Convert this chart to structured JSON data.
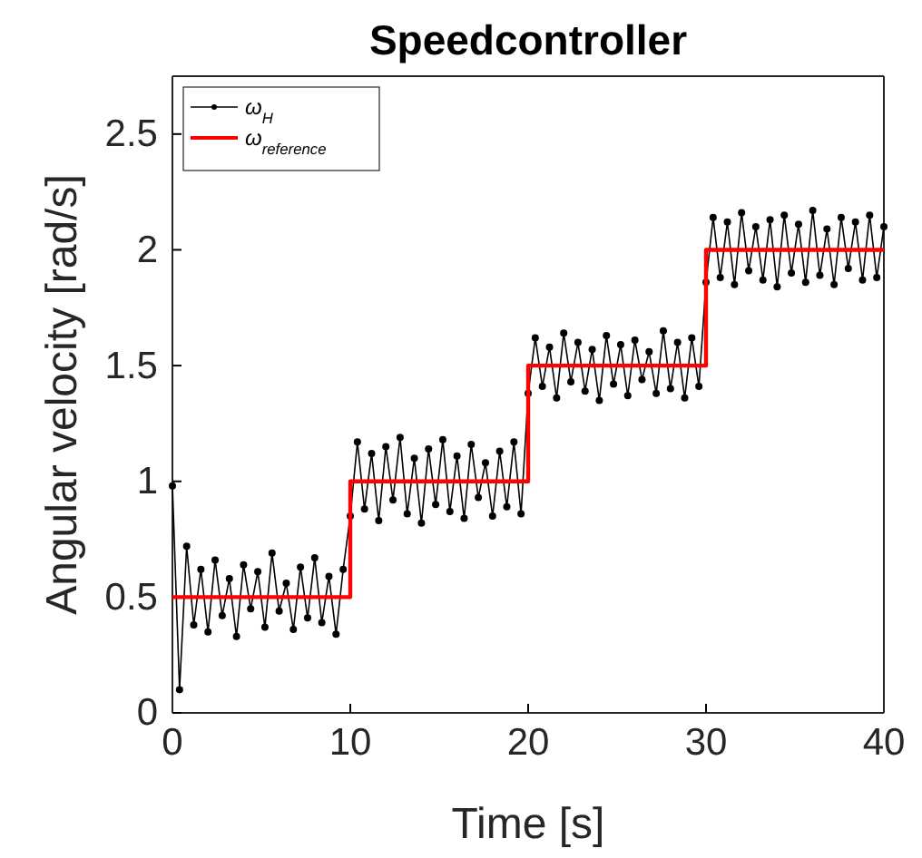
{
  "chart_data": {
    "type": "line",
    "title": "Speedcontroller",
    "xlabel": "Time [s]",
    "ylabel": "Angular velocity [rad/s]",
    "xlim": [
      0,
      40
    ],
    "xticks": [
      0,
      10,
      20,
      30,
      40
    ],
    "ylim": [
      0,
      2.75
    ],
    "yticks": [
      0,
      0.5,
      1,
      1.5,
      2,
      2.5
    ],
    "grid": false,
    "legend": "top left",
    "line_style": "solid",
    "series": [
      {
        "name": "ω$_{H}$",
        "color": "#000000",
        "marker": "circle",
        "x": [
          0,
          0.4,
          0.8,
          1.2,
          1.6,
          2,
          2.4,
          2.8,
          3.2,
          3.6,
          4,
          4.4,
          4.8,
          5.2,
          5.6,
          6,
          6.4,
          6.8,
          7.2,
          7.6,
          8,
          8.4,
          8.8,
          9.2,
          9.6,
          10,
          10.4,
          10.8,
          11.2,
          11.6,
          12,
          12.4,
          12.8,
          13.2,
          13.6,
          14,
          14.4,
          14.8,
          15.2,
          15.6,
          16,
          16.4,
          16.8,
          17.2,
          17.6,
          18,
          18.4,
          18.8,
          19.2,
          19.6,
          20,
          20.4,
          20.8,
          21.2,
          21.6,
          22,
          22.4,
          22.8,
          23.2,
          23.6,
          24,
          24.4,
          24.8,
          25.2,
          25.6,
          26,
          26.4,
          26.8,
          27.2,
          27.6,
          28,
          28.4,
          28.8,
          29.2,
          29.6,
          30,
          30.4,
          30.8,
          31.2,
          31.6,
          32,
          32.4,
          32.8,
          33.2,
          33.6,
          34,
          34.4,
          34.8,
          35.2,
          35.6,
          36,
          36.4,
          36.8,
          37.2,
          37.6,
          38,
          38.4,
          38.8,
          39.2,
          39.6,
          40
        ],
        "values": [
          0.98,
          0.1,
          0.72,
          0.38,
          0.62,
          0.35,
          0.66,
          0.42,
          0.58,
          0.33,
          0.64,
          0.45,
          0.61,
          0.37,
          0.69,
          0.44,
          0.56,
          0.36,
          0.63,
          0.41,
          0.67,
          0.39,
          0.59,
          0.34,
          0.62,
          0.85,
          1.17,
          0.88,
          1.12,
          0.83,
          1.15,
          0.92,
          1.19,
          0.86,
          1.1,
          0.82,
          1.14,
          0.9,
          1.18,
          0.87,
          1.11,
          0.84,
          1.16,
          0.93,
          1.08,
          0.85,
          1.13,
          0.89,
          1.17,
          0.86,
          1.38,
          1.62,
          1.41,
          1.58,
          1.36,
          1.64,
          1.43,
          1.6,
          1.39,
          1.57,
          1.35,
          1.63,
          1.42,
          1.59,
          1.37,
          1.61,
          1.44,
          1.56,
          1.38,
          1.65,
          1.4,
          1.6,
          1.36,
          1.62,
          1.41,
          1.86,
          2.14,
          1.88,
          2.12,
          1.85,
          2.16,
          1.91,
          2.1,
          1.87,
          2.13,
          1.84,
          2.15,
          1.9,
          2.11,
          1.86,
          2.17,
          1.89,
          2.09,
          1.85,
          2.14,
          1.92,
          2.12,
          1.87,
          2.15,
          1.88,
          2.1
        ]
      },
      {
        "name": "ω$_{reference}$",
        "color": "#ff0000",
        "marker": "none",
        "x": [
          0,
          10,
          10,
          20,
          20,
          30,
          30,
          40
        ],
        "values": [
          0.5,
          0.5,
          1,
          1,
          1.5,
          1.5,
          2,
          2
        ]
      }
    ]
  }
}
